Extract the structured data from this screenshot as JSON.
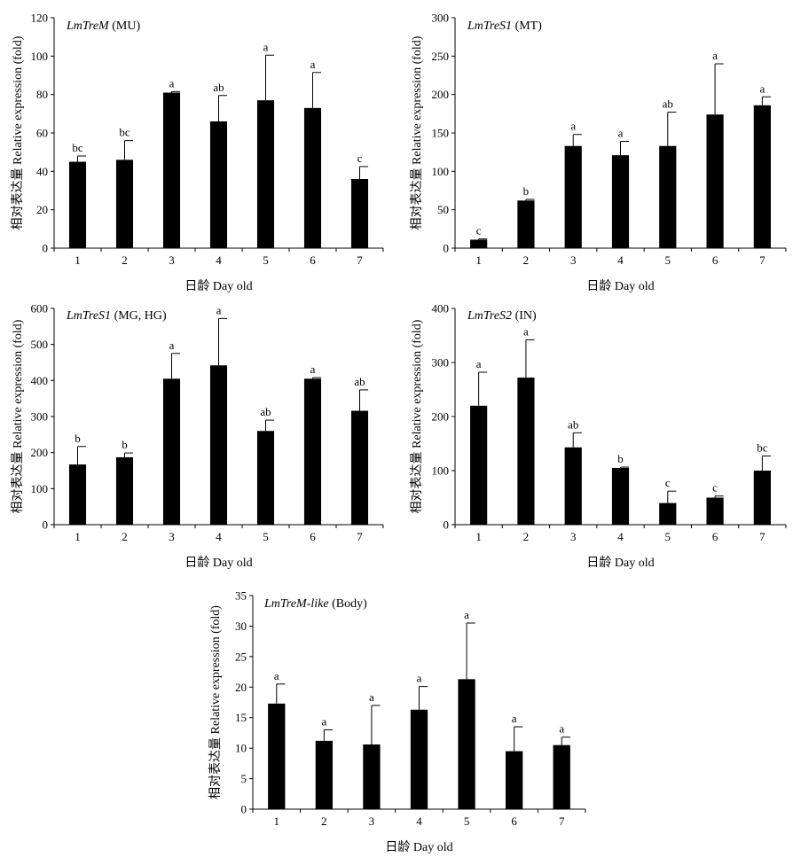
{
  "chart_data": [
    {
      "type": "bar",
      "title": "LmTreM (MU)",
      "title_gene": "LmTreM",
      "title_tissue": "(MU)",
      "xlabel": "日龄 Day old",
      "ylabel": "相对表达量 Relative expression (fold)",
      "categories": [
        "1",
        "2",
        "3",
        "4",
        "5",
        "6",
        "7"
      ],
      "values": [
        45,
        46,
        81,
        66,
        77,
        73,
        36
      ],
      "errors": [
        3,
        10,
        0.5,
        13.5,
        23.5,
        18.5,
        6.5
      ],
      "letters": [
        "bc",
        "bc",
        "a",
        "ab",
        "a",
        "a",
        "c"
      ],
      "ylim": [
        0,
        120
      ],
      "yticks": [
        0,
        20,
        40,
        60,
        80,
        100,
        120
      ],
      "grid": false,
      "color": "#000000"
    },
    {
      "type": "bar",
      "title": "LmTreS1 (MT)",
      "title_gene": "LmTreS1",
      "title_tissue": "(MT)",
      "xlabel": "日龄 Day old",
      "ylabel": "相对表达量 Relative expression (fold)",
      "categories": [
        "1",
        "2",
        "3",
        "4",
        "5",
        "6",
        "7"
      ],
      "values": [
        11,
        62,
        133,
        121,
        133,
        174,
        186
      ],
      "errors": [
        1,
        1.5,
        15,
        18,
        44,
        66,
        11
      ],
      "letters": [
        "c",
        "b",
        "a",
        "a",
        "ab",
        "a",
        "a"
      ],
      "ylim": [
        0,
        300
      ],
      "yticks": [
        0,
        50,
        100,
        150,
        200,
        250,
        300
      ],
      "grid": false,
      "color": "#000000"
    },
    {
      "type": "bar",
      "title": "LmTreS1 (MG, HG)",
      "title_gene": "LmTreS1",
      "title_tissue": "(MG, HG)",
      "xlabel": "日龄 Day old",
      "ylabel": "相对表达量 Relative expression (fold)",
      "categories": [
        "1",
        "2",
        "3",
        "4",
        "5",
        "6",
        "7"
      ],
      "values": [
        167,
        187,
        405,
        442,
        260,
        405,
        316
      ],
      "errors": [
        50,
        12,
        70,
        130,
        30,
        3,
        58
      ],
      "letters": [
        "b",
        "b",
        "a",
        "a",
        "ab",
        "a",
        "ab"
      ],
      "ylim": [
        0,
        600
      ],
      "yticks": [
        0,
        100,
        200,
        300,
        400,
        500,
        600
      ],
      "grid": false,
      "color": "#000000"
    },
    {
      "type": "bar",
      "title": "LmTreS2 (IN)",
      "title_gene": "LmTreS2",
      "title_tissue": "(IN)",
      "xlabel": "日龄 Day old",
      "ylabel": "相对表达量 Relative expression (fold)",
      "categories": [
        "1",
        "2",
        "3",
        "4",
        "5",
        "6",
        "7"
      ],
      "values": [
        220,
        272,
        143,
        105,
        40,
        50,
        100
      ],
      "errors": [
        62,
        70,
        27,
        1.5,
        22,
        3,
        27
      ],
      "letters": [
        "a",
        "a",
        "ab",
        "b",
        "c",
        "c",
        "bc"
      ],
      "ylim": [
        0,
        400
      ],
      "yticks": [
        0,
        100,
        200,
        300,
        400
      ],
      "grid": false,
      "color": "#000000"
    },
    {
      "type": "bar",
      "title": "LmTreM-like (Body)",
      "title_gene": "LmTreM-like",
      "title_tissue": "(Body)",
      "xlabel": "日龄 Day old",
      "ylabel": "相对表达量 Relative expression (fold)",
      "categories": [
        "1",
        "2",
        "3",
        "4",
        "5",
        "6",
        "7"
      ],
      "values": [
        17.3,
        11.2,
        10.6,
        16.3,
        21.3,
        9.5,
        10.5
      ],
      "errors": [
        3.2,
        1.8,
        6.4,
        3.8,
        9.2,
        4,
        1.3
      ],
      "letters": [
        "a",
        "a",
        "a",
        "a",
        "a",
        "a",
        "a"
      ],
      "ylim": [
        0,
        35
      ],
      "yticks": [
        0,
        5,
        10,
        15,
        20,
        25,
        30,
        35
      ],
      "grid": false,
      "color": "#000000"
    }
  ]
}
